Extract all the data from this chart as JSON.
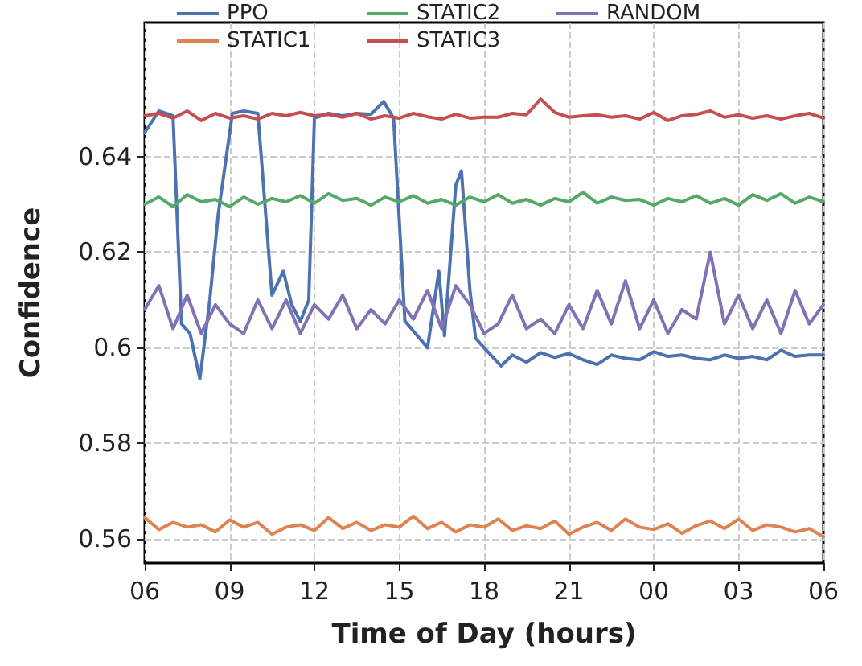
{
  "chart_data": {
    "type": "line",
    "xlabel": "Time of Day (hours)",
    "ylabel": "Confidence",
    "x": [
      6,
      6.5,
      7,
      7.5,
      8,
      8.5,
      9,
      9.5,
      10,
      10.5,
      11,
      11.5,
      12,
      12.5,
      13,
      13.5,
      14,
      14.5,
      15,
      15.5,
      16,
      16.5,
      17,
      17.5,
      18,
      18.5,
      19,
      19.5,
      20,
      20.5,
      21,
      21.5,
      22,
      22.5,
      23,
      23.5,
      24,
      24.5,
      25,
      25.5,
      26,
      26.5,
      27,
      27.5,
      28,
      28.5,
      29,
      29.5,
      30
    ],
    "series": [
      {
        "name": "PPO",
        "color": "#4c72b0",
        "x": [
          6,
          6.5,
          7,
          7.3,
          7.6,
          7.95,
          8.3,
          8.6,
          9.1,
          9.5,
          10,
          10.5,
          10.9,
          11.2,
          11.5,
          11.8,
          12,
          12.5,
          13,
          13.5,
          14,
          14.45,
          14.8,
          15.2,
          15.5,
          16,
          16.4,
          16.6,
          17,
          17.2,
          17.5,
          17.7,
          18,
          18.6,
          19,
          19.5,
          20,
          20.5,
          21,
          21.5,
          22,
          22.5,
          23,
          23.5,
          24,
          24.5,
          25,
          25.5,
          26,
          26.5,
          27,
          27.5,
          28,
          28.5,
          29,
          29.5,
          30
        ],
        "values": [
          0.645,
          0.6495,
          0.6485,
          0.605,
          0.603,
          0.5935,
          0.61,
          0.628,
          0.649,
          0.6495,
          0.649,
          0.611,
          0.616,
          0.609,
          0.6055,
          0.61,
          0.648,
          0.649,
          0.6485,
          0.649,
          0.6488,
          0.6515,
          0.648,
          0.6056,
          0.6035,
          0.6,
          0.616,
          0.6025,
          0.634,
          0.637,
          0.612,
          0.602,
          0.6,
          0.5962,
          0.5985,
          0.597,
          0.599,
          0.598,
          0.5988,
          0.5975,
          0.5965,
          0.5985,
          0.5978,
          0.5975,
          0.5992,
          0.5982,
          0.5985,
          0.5978,
          0.5975,
          0.5985,
          0.5978,
          0.5982,
          0.5975,
          0.5995,
          0.5982,
          0.5985,
          0.5985
        ]
      },
      {
        "name": "STATIC1",
        "color": "#dd8452",
        "values": [
          0.5645,
          0.562,
          0.5635,
          0.5625,
          0.563,
          0.5615,
          0.564,
          0.5625,
          0.5635,
          0.561,
          0.5625,
          0.563,
          0.5618,
          0.5645,
          0.5622,
          0.5635,
          0.5618,
          0.563,
          0.5625,
          0.5648,
          0.5622,
          0.5635,
          0.5615,
          0.563,
          0.5625,
          0.5642,
          0.5618,
          0.5628,
          0.5622,
          0.5638,
          0.561,
          0.5625,
          0.5635,
          0.5618,
          0.5642,
          0.5625,
          0.562,
          0.5632,
          0.5612,
          0.5628,
          0.5638,
          0.5622,
          0.5642,
          0.5618,
          0.563,
          0.5625,
          0.5615,
          0.5622,
          0.5605
        ]
      },
      {
        "name": "STATIC2",
        "color": "#55a868",
        "values": [
          0.63,
          0.6315,
          0.6295,
          0.632,
          0.6305,
          0.631,
          0.6295,
          0.6315,
          0.63,
          0.6312,
          0.6305,
          0.6318,
          0.6302,
          0.6322,
          0.6308,
          0.6312,
          0.6298,
          0.6315,
          0.6305,
          0.6318,
          0.6302,
          0.631,
          0.6298,
          0.6315,
          0.6305,
          0.632,
          0.6302,
          0.631,
          0.6298,
          0.6312,
          0.6305,
          0.6325,
          0.6302,
          0.6315,
          0.6308,
          0.631,
          0.6298,
          0.6312,
          0.6305,
          0.6318,
          0.6302,
          0.6312,
          0.6298,
          0.632,
          0.6308,
          0.6322,
          0.6302,
          0.6315,
          0.6305
        ]
      },
      {
        "name": "STATIC3",
        "color": "#c44e52",
        "values": [
          0.6485,
          0.649,
          0.648,
          0.6495,
          0.6475,
          0.649,
          0.648,
          0.6485,
          0.6478,
          0.649,
          0.6485,
          0.6492,
          0.6485,
          0.6488,
          0.6482,
          0.649,
          0.6478,
          0.6485,
          0.648,
          0.649,
          0.6483,
          0.6478,
          0.6488,
          0.648,
          0.6482,
          0.6482,
          0.649,
          0.6487,
          0.652,
          0.6492,
          0.6482,
          0.6485,
          0.6487,
          0.6482,
          0.6485,
          0.6478,
          0.6492,
          0.6475,
          0.6485,
          0.6488,
          0.6495,
          0.6482,
          0.6487,
          0.648,
          0.6485,
          0.6478,
          0.6485,
          0.649,
          0.648
        ]
      },
      {
        "name": "RANDOM",
        "color": "#8172b3",
        "values": [
          0.608,
          0.613,
          0.604,
          0.611,
          0.603,
          0.609,
          0.605,
          0.603,
          0.61,
          0.604,
          0.61,
          0.603,
          0.609,
          0.606,
          0.611,
          0.604,
          0.608,
          0.605,
          0.61,
          0.606,
          0.612,
          0.604,
          0.613,
          0.609,
          0.603,
          0.605,
          0.611,
          0.604,
          0.606,
          0.603,
          0.609,
          0.604,
          0.612,
          0.605,
          0.614,
          0.604,
          0.61,
          0.603,
          0.608,
          0.606,
          0.62,
          0.605,
          0.611,
          0.604,
          0.61,
          0.603,
          0.612,
          0.605,
          0.609
        ]
      }
    ],
    "xlim": [
      6,
      30
    ],
    "xticks": [
      {
        "value": 6,
        "label": "06"
      },
      {
        "value": 9,
        "label": "09"
      },
      {
        "value": 12,
        "label": "12"
      },
      {
        "value": 15,
        "label": "15"
      },
      {
        "value": 18,
        "label": "18"
      },
      {
        "value": 21,
        "label": "21"
      },
      {
        "value": 24,
        "label": "00"
      },
      {
        "value": 27,
        "label": "03"
      },
      {
        "value": 30,
        "label": "06"
      }
    ],
    "ylim": [
      0.555,
      0.668
    ],
    "yticks": [
      0.56,
      0.58,
      0.6,
      0.62,
      0.64
    ],
    "grid": true,
    "legend": "top",
    "marker": "none",
    "line_style": "solid"
  }
}
